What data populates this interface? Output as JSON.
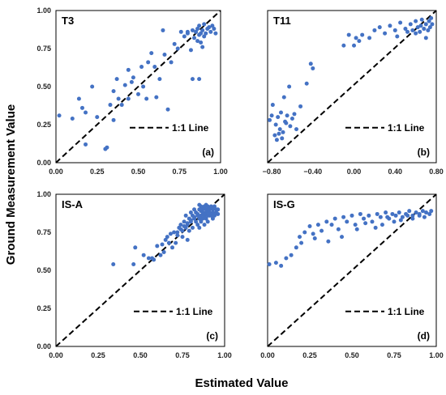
{
  "figure": {
    "xlabel": "Estimated Value",
    "ylabel": "Ground Measurement Value",
    "point_color": "#4472C4",
    "line_color": "#000000"
  },
  "chart_data": [
    {
      "type": "scatter",
      "title": "T3",
      "letter": "(a)",
      "legend": "1:1 Line",
      "xlim": [
        0,
        1
      ],
      "ylim": [
        0,
        1
      ],
      "xticks": [
        "0.00",
        "0.25",
        "0.50",
        "0.75",
        "1.00"
      ],
      "yticks": [
        "0.00",
        "0.25",
        "0.50",
        "0.75",
        "1.00"
      ],
      "xtick_values": [
        0,
        0.25,
        0.5,
        0.75,
        1
      ],
      "ytick_values": [
        0,
        0.25,
        0.5,
        0.75,
        1
      ],
      "ref_line": [
        [
          0,
          0
        ],
        [
          1,
          1
        ]
      ],
      "x": [
        0.02,
        0.1,
        0.14,
        0.16,
        0.18,
        0.18,
        0.22,
        0.25,
        0.3,
        0.31,
        0.33,
        0.35,
        0.35,
        0.37,
        0.38,
        0.4,
        0.42,
        0.44,
        0.44,
        0.46,
        0.47,
        0.5,
        0.52,
        0.53,
        0.55,
        0.56,
        0.58,
        0.6,
        0.61,
        0.63,
        0.65,
        0.66,
        0.68,
        0.7,
        0.72,
        0.74,
        0.76,
        0.78,
        0.8,
        0.8,
        0.82,
        0.83,
        0.84,
        0.85,
        0.86,
        0.86,
        0.87,
        0.87,
        0.88,
        0.88,
        0.89,
        0.89,
        0.9,
        0.9,
        0.91,
        0.92,
        0.93,
        0.94,
        0.95,
        0.96,
        0.97,
        0.83,
        0.87
      ],
      "y": [
        0.31,
        0.29,
        0.42,
        0.36,
        0.12,
        0.33,
        0.5,
        0.3,
        0.09,
        0.1,
        0.38,
        0.47,
        0.28,
        0.55,
        0.42,
        0.38,
        0.51,
        0.61,
        0.42,
        0.53,
        0.56,
        0.45,
        0.63,
        0.5,
        0.42,
        0.66,
        0.72,
        0.63,
        0.43,
        0.55,
        0.87,
        0.71,
        0.35,
        0.66,
        0.78,
        0.75,
        0.86,
        0.83,
        0.86,
        0.85,
        0.74,
        0.87,
        0.82,
        0.86,
        0.8,
        0.88,
        0.84,
        0.9,
        0.85,
        0.79,
        0.87,
        0.76,
        0.91,
        0.83,
        0.85,
        0.88,
        0.89,
        0.86,
        0.9,
        0.88,
        0.85,
        0.55,
        0.55
      ]
    },
    {
      "type": "scatter",
      "title": "T11",
      "letter": "(b)",
      "legend": "1:1 Line",
      "xlim": [
        -0.84,
        0.8
      ],
      "ylim": [
        0,
        1
      ],
      "xticks": [
        "−0.80",
        "−0.40",
        "0.00",
        "0.40",
        "0.80"
      ],
      "yticks": [
        "",
        "",
        "",
        "",
        ""
      ],
      "xtick_values": [
        -0.8,
        -0.4,
        0,
        0.4,
        0.8
      ],
      "ytick_values": [
        0,
        0.25,
        0.5,
        0.75,
        1
      ],
      "ref_line": [
        [
          -0.84,
          0
        ],
        [
          0.8,
          1
        ]
      ],
      "x": [
        -0.82,
        -0.8,
        -0.79,
        -0.77,
        -0.76,
        -0.75,
        -0.74,
        -0.73,
        -0.72,
        -0.71,
        -0.7,
        -0.69,
        -0.68,
        -0.67,
        -0.66,
        -0.65,
        -0.63,
        -0.62,
        -0.6,
        -0.58,
        -0.56,
        -0.52,
        -0.46,
        -0.42,
        -0.4,
        -0.1,
        -0.05,
        0.0,
        0.02,
        0.05,
        0.08,
        0.15,
        0.2,
        0.25,
        0.3,
        0.35,
        0.4,
        0.42,
        0.45,
        0.5,
        0.52,
        0.55,
        0.57,
        0.6,
        0.62,
        0.64,
        0.65,
        0.66,
        0.68,
        0.7,
        0.72,
        0.73,
        0.74,
        0.75,
        0.76,
        0.6,
        0.7
      ],
      "y": [
        0.28,
        0.31,
        0.38,
        0.18,
        0.25,
        0.15,
        0.3,
        0.19,
        0.22,
        0.33,
        0.16,
        0.2,
        0.43,
        0.27,
        0.26,
        0.31,
        0.5,
        0.24,
        0.29,
        0.32,
        0.22,
        0.37,
        0.52,
        0.65,
        0.62,
        0.77,
        0.84,
        0.77,
        0.82,
        0.8,
        0.84,
        0.82,
        0.87,
        0.89,
        0.85,
        0.9,
        0.87,
        0.83,
        0.92,
        0.88,
        0.86,
        0.91,
        0.87,
        0.93,
        0.89,
        0.86,
        0.9,
        0.94,
        0.88,
        0.91,
        0.87,
        0.93,
        0.89,
        0.95,
        0.91,
        0.85,
        0.82
      ]
    },
    {
      "type": "scatter",
      "title": "IS-A",
      "letter": "(c)",
      "legend": "1:1 Line",
      "xlim": [
        0,
        1
      ],
      "ylim": [
        0,
        1
      ],
      "xticks": [
        "0.00",
        "0.25",
        "0.50",
        "0.75",
        "1.00"
      ],
      "yticks": [
        "0.00",
        "0.25",
        "0.50",
        "0.75",
        "1.00"
      ],
      "xtick_values": [
        0,
        0.25,
        0.5,
        0.75,
        1
      ],
      "ytick_values": [
        0,
        0.25,
        0.5,
        0.75,
        1
      ],
      "ref_line": [
        [
          0,
          0
        ],
        [
          1,
          1
        ]
      ],
      "x": [
        0.34,
        0.46,
        0.47,
        0.52,
        0.55,
        0.57,
        0.58,
        0.6,
        0.62,
        0.63,
        0.64,
        0.65,
        0.66,
        0.67,
        0.68,
        0.69,
        0.7,
        0.71,
        0.72,
        0.73,
        0.74,
        0.75,
        0.75,
        0.76,
        0.77,
        0.77,
        0.78,
        0.78,
        0.79,
        0.79,
        0.8,
        0.8,
        0.81,
        0.81,
        0.82,
        0.82,
        0.83,
        0.83,
        0.84,
        0.84,
        0.85,
        0.85,
        0.85,
        0.86,
        0.86,
        0.86,
        0.87,
        0.87,
        0.87,
        0.88,
        0.88,
        0.88,
        0.89,
        0.89,
        0.89,
        0.9,
        0.9,
        0.9,
        0.91,
        0.91,
        0.92,
        0.92,
        0.93,
        0.93,
        0.94,
        0.94,
        0.95,
        0.95,
        0.96,
        0.96,
        0.85,
        0.87,
        0.89,
        0.91,
        0.93,
        0.88,
        0.9,
        0.92,
        0.86,
        0.84,
        0.82,
        0.8,
        0.78,
        0.76,
        0.74,
        0.72
      ],
      "y": [
        0.54,
        0.54,
        0.65,
        0.6,
        0.58,
        0.58,
        0.57,
        0.66,
        0.6,
        0.67,
        0.62,
        0.7,
        0.72,
        0.68,
        0.74,
        0.65,
        0.75,
        0.68,
        0.73,
        0.78,
        0.8,
        0.76,
        0.72,
        0.82,
        0.78,
        0.86,
        0.8,
        0.7,
        0.84,
        0.76,
        0.82,
        0.88,
        0.78,
        0.86,
        0.84,
        0.9,
        0.82,
        0.88,
        0.86,
        0.8,
        0.84,
        0.9,
        0.78,
        0.86,
        0.92,
        0.82,
        0.88,
        0.84,
        0.9,
        0.86,
        0.92,
        0.8,
        0.88,
        0.84,
        0.9,
        0.86,
        0.92,
        0.82,
        0.88,
        0.9,
        0.86,
        0.92,
        0.88,
        0.9,
        0.86,
        0.92,
        0.88,
        0.9,
        0.87,
        0.9,
        0.93,
        0.91,
        0.93,
        0.86,
        0.84,
        0.87,
        0.89,
        0.91,
        0.89,
        0.87,
        0.85,
        0.83,
        0.81,
        0.79,
        0.77,
        0.75
      ]
    },
    {
      "type": "scatter",
      "title": "IS-G",
      "letter": "(d)",
      "legend": "1:1 Line",
      "xlim": [
        0,
        1
      ],
      "ylim": [
        0,
        1
      ],
      "xticks": [
        "0.00",
        "0.25",
        "0.50",
        "0.75",
        "1.00"
      ],
      "yticks": [
        "",
        "",
        "",
        "",
        ""
      ],
      "xtick_values": [
        0,
        0.25,
        0.5,
        0.75,
        1
      ],
      "ytick_values": [
        0,
        0.25,
        0.5,
        0.75,
        1
      ],
      "ref_line": [
        [
          0,
          0
        ],
        [
          1,
          1
        ]
      ],
      "x": [
        0.01,
        0.05,
        0.08,
        0.11,
        0.14,
        0.17,
        0.19,
        0.2,
        0.22,
        0.25,
        0.27,
        0.3,
        0.32,
        0.35,
        0.38,
        0.4,
        0.42,
        0.45,
        0.47,
        0.5,
        0.52,
        0.55,
        0.57,
        0.6,
        0.62,
        0.65,
        0.67,
        0.7,
        0.72,
        0.74,
        0.76,
        0.78,
        0.8,
        0.82,
        0.84,
        0.86,
        0.88,
        0.9,
        0.92,
        0.94,
        0.96,
        0.64,
        0.68,
        0.58,
        0.53,
        0.44,
        0.36,
        0.28,
        0.86,
        0.9,
        0.93,
        0.83,
        0.79,
        0.75,
        0.71,
        0.97
      ],
      "y": [
        0.54,
        0.55,
        0.53,
        0.58,
        0.6,
        0.65,
        0.72,
        0.68,
        0.75,
        0.79,
        0.74,
        0.8,
        0.76,
        0.82,
        0.8,
        0.84,
        0.77,
        0.85,
        0.82,
        0.86,
        0.8,
        0.87,
        0.84,
        0.86,
        0.82,
        0.87,
        0.85,
        0.88,
        0.84,
        0.87,
        0.86,
        0.88,
        0.85,
        0.87,
        0.89,
        0.86,
        0.88,
        0.87,
        0.89,
        0.88,
        0.87,
        0.78,
        0.8,
        0.81,
        0.77,
        0.72,
        0.69,
        0.71,
        0.84,
        0.86,
        0.85,
        0.86,
        0.83,
        0.82,
        0.85,
        0.89
      ]
    }
  ]
}
